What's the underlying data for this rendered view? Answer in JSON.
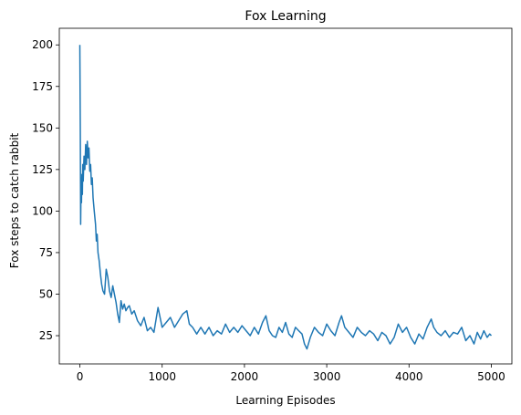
{
  "chart_data": {
    "type": "line",
    "title": "Fox Learning",
    "xlabel": "Learning Episodes",
    "ylabel": "Fox steps to catch rabbit",
    "xlim": [
      -250,
      5250
    ],
    "ylim": [
      8,
      210
    ],
    "xticks": [
      0,
      1000,
      2000,
      3000,
      4000,
      5000
    ],
    "yticks": [
      25,
      50,
      75,
      100,
      125,
      150,
      175,
      200
    ],
    "grid": false,
    "legend": "none",
    "series": [
      {
        "color": "#1f77b4",
        "x": [
          0,
          5,
          10,
          15,
          20,
          25,
          30,
          35,
          40,
          50,
          60,
          70,
          80,
          90,
          100,
          110,
          120,
          130,
          140,
          150,
          160,
          175,
          190,
          200,
          210,
          220,
          235,
          250,
          265,
          280,
          300,
          320,
          340,
          360,
          380,
          400,
          420,
          440,
          460,
          480,
          500,
          520,
          540,
          560,
          580,
          600,
          630,
          660,
          700,
          740,
          780,
          820,
          860,
          900,
          950,
          1000,
          1050,
          1100,
          1150,
          1200,
          1250,
          1300,
          1330,
          1370,
          1420,
          1470,
          1520,
          1570,
          1620,
          1670,
          1720,
          1770,
          1820,
          1870,
          1920,
          1970,
          2020,
          2070,
          2120,
          2170,
          2220,
          2260,
          2300,
          2340,
          2380,
          2420,
          2460,
          2500,
          2540,
          2580,
          2620,
          2660,
          2700,
          2730,
          2760,
          2800,
          2850,
          2900,
          2950,
          3000,
          3050,
          3100,
          3150,
          3180,
          3220,
          3270,
          3320,
          3370,
          3420,
          3470,
          3520,
          3570,
          3620,
          3670,
          3720,
          3770,
          3820,
          3870,
          3920,
          3970,
          4020,
          4070,
          4120,
          4170,
          4220,
          4270,
          4300,
          4340,
          4390,
          4440,
          4490,
          4540,
          4590,
          4640,
          4690,
          4740,
          4790,
          4830,
          4870,
          4910,
          4950,
          4980,
          5000
        ],
        "y": [
          200,
          150,
          92,
          120,
          105,
          122,
          110,
          128,
          118,
          133,
          125,
          140,
          128,
          142,
          132,
          138,
          124,
          128,
          116,
          120,
          108,
          100,
          92,
          82,
          86,
          75,
          70,
          62,
          56,
          52,
          50,
          65,
          60,
          52,
          48,
          55,
          50,
          45,
          38,
          33,
          46,
          41,
          44,
          40,
          42,
          43,
          38,
          40,
          34,
          31,
          36,
          28,
          30,
          27,
          42,
          30,
          33,
          36,
          30,
          34,
          38,
          40,
          32,
          30,
          26,
          30,
          26,
          30,
          25,
          28,
          26,
          32,
          27,
          30,
          27,
          31,
          28,
          25,
          30,
          26,
          33,
          37,
          28,
          25,
          24,
          30,
          27,
          33,
          26,
          24,
          30,
          28,
          26,
          20,
          17,
          24,
          30,
          27,
          25,
          32,
          28,
          25,
          33,
          37,
          30,
          27,
          24,
          30,
          27,
          25,
          28,
          26,
          22,
          27,
          25,
          20,
          24,
          32,
          27,
          30,
          24,
          20,
          26,
          23,
          30,
          35,
          30,
          27,
          25,
          28,
          24,
          27,
          26,
          30,
          22,
          25,
          20,
          27,
          23,
          28,
          24,
          26,
          25
        ]
      }
    ]
  }
}
